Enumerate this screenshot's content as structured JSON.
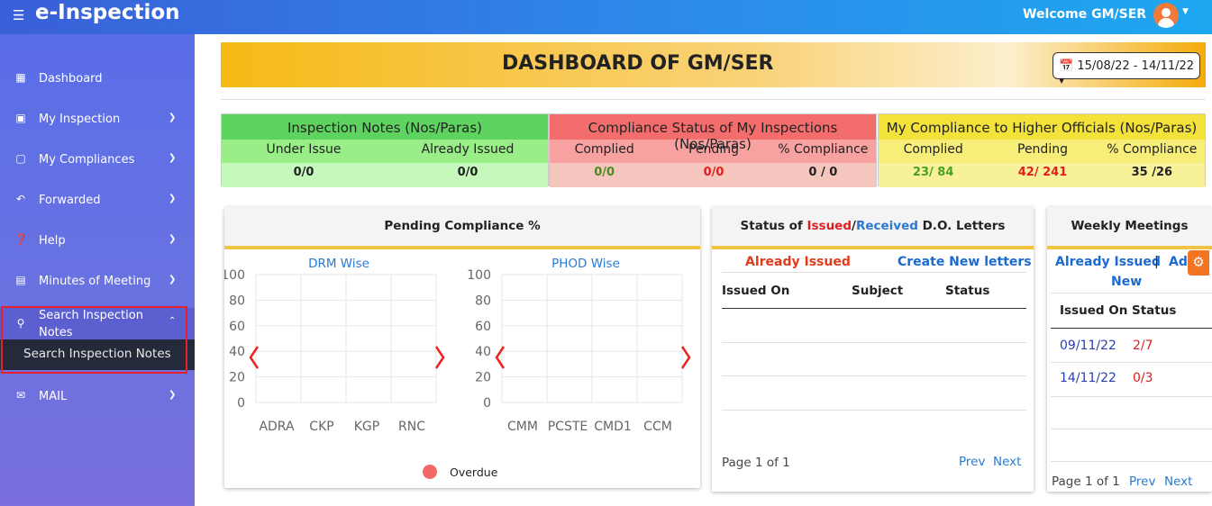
{
  "app": {
    "menu_icon": "hamburger-icon",
    "brand": "e-Inspection",
    "welcome": "Welcome  GM/SER",
    "avatar_icon": "user-icon",
    "caret_icon": "caret-down-icon"
  },
  "sidebar": {
    "items": [
      {
        "label": "Dashboard",
        "icon": "grid-icon",
        "has_chevron": false
      },
      {
        "label": "My Inspection",
        "icon": "clipboard-icon",
        "has_chevron": true
      },
      {
        "label": "My Compliances",
        "icon": "notebook-icon",
        "has_chevron": true
      },
      {
        "label": "Forwarded",
        "icon": "reply-icon",
        "has_chevron": true
      },
      {
        "label": "Help",
        "icon": "question-icon",
        "has_chevron": true
      },
      {
        "label": "Minutes of Meeting",
        "icon": "document-icon",
        "has_chevron": true
      },
      {
        "label": "Search Inspection Notes",
        "icon": "search-icon",
        "has_chevron": true,
        "expanded": true,
        "children": [
          "Search Inspection Notes"
        ]
      },
      {
        "label": "MAIL",
        "icon": "mail-icon",
        "has_chevron": true
      }
    ]
  },
  "header": {
    "title": "DASHBOARD OF GM/SER",
    "date_range": "15/08/22 - 14/11/22"
  },
  "stats": [
    {
      "title": "Inspection Notes (Nos/Paras)",
      "cols": [
        "Under Issue",
        "Already Issued"
      ],
      "values": [
        "0/0",
        "0/0"
      ],
      "title_bg": "#5fd35f",
      "head_bg": "#99ee88",
      "val_bg": "#c6f7bb",
      "value_colors": [
        "#222",
        "#222"
      ]
    },
    {
      "title": "Compliance Status of My Inspections (Nos/Paras)",
      "cols": [
        "Complied",
        "Pending",
        "% Compliance"
      ],
      "values": [
        "0/0",
        "0/0",
        "0 / 0"
      ],
      "title_bg": "#f46d6d",
      "head_bg": "#f7a1a1",
      "val_bg": "#f5c6bd",
      "value_colors": [
        "#4a8a20",
        "#e02020",
        "#222"
      ]
    },
    {
      "title": "My Compliance to Higher Officials (Nos/Paras)",
      "cols": [
        "Complied",
        "Pending",
        "% Compliance"
      ],
      "values": [
        "23/ 84",
        "42/ 241",
        "35 /26"
      ],
      "title_bg": "#f3e23a",
      "head_bg": "#f7ee7a",
      "val_bg": "#f7f29a",
      "value_colors": [
        "#4aa020",
        "#e02020",
        "#222"
      ]
    }
  ],
  "pending_compliance": {
    "title": "Pending Compliance %",
    "legend": "Overdue",
    "legend_color": "#f46868",
    "prev_icon": "chevron-left-icon",
    "next_icon": "chevron-right-icon"
  },
  "chart_data": [
    {
      "type": "bar",
      "title": "DRM Wise",
      "categories": [
        "ADRA",
        "CKP",
        "KGP",
        "RNC"
      ],
      "series": [
        {
          "name": "Overdue",
          "values": [
            0,
            0,
            0,
            0
          ]
        }
      ],
      "ylim": [
        0,
        100
      ],
      "yticks": [
        "100",
        "80",
        "60",
        "40",
        "20",
        "0"
      ],
      "grid": true
    },
    {
      "type": "bar",
      "title": "PHOD Wise",
      "categories": [
        "CMM",
        "PCSTE",
        "CMD1",
        "CCM"
      ],
      "series": [
        {
          "name": "Overdue",
          "values": [
            0,
            0,
            0,
            0
          ]
        }
      ],
      "ylim": [
        0,
        100
      ],
      "yticks": [
        "100",
        "80",
        "60",
        "40",
        "20",
        "0"
      ],
      "grid": true
    }
  ],
  "do_letters": {
    "title_parts": [
      "Status of ",
      "Issued",
      "/",
      "Received",
      " D.O. Letters"
    ],
    "tab_issued": "Already Issued",
    "tab_create": "Create New letters",
    "columns": [
      "Issued On",
      "Subject",
      "Status"
    ],
    "page": "Page 1 of 1",
    "prev": "Prev",
    "next": "Next"
  },
  "weekly": {
    "title": "Weekly Meetings",
    "tab_issued": "Already Issued",
    "sep": "|",
    "tab_add": "Add",
    "tab_new": "New",
    "columns": [
      "Issued On",
      "Status"
    ],
    "rows": [
      {
        "date": "09/11/22",
        "status": "2/7"
      },
      {
        "date": "14/11/22",
        "status": "0/3"
      }
    ],
    "page": "Page 1 of 1",
    "prev": "Prev",
    "next": "Next"
  },
  "settings_icon": "gear-icon"
}
